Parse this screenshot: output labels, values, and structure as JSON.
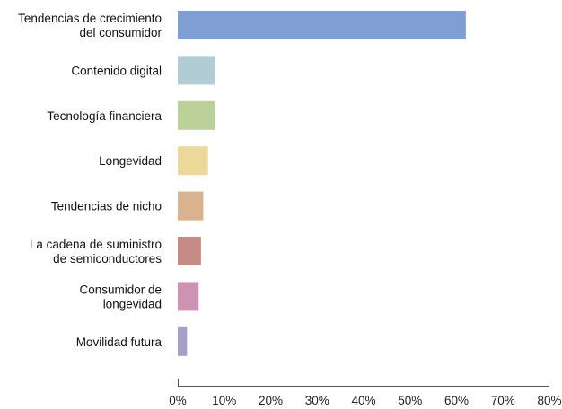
{
  "chart_data": {
    "type": "bar",
    "orientation": "horizontal",
    "categories": [
      "Tendencias de crecimiento del consumidor",
      "Contenido digital",
      "Tecnología financiera",
      "Longevidad",
      "Tendencias de nicho",
      "La cadena de suministro de semiconductores",
      "Consumidor de longevidad",
      "Movilidad futura"
    ],
    "category_lines": [
      [
        "Tendencias de crecimiento",
        "del consumidor"
      ],
      [
        "Contenido digital"
      ],
      [
        "Tecnología financiera"
      ],
      [
        "Longevidad"
      ],
      [
        "Tendencias de nicho"
      ],
      [
        "La cadena de suministro",
        "de semiconductores"
      ],
      [
        "Consumidor de",
        "longevidad"
      ],
      [
        "Movilidad futura"
      ]
    ],
    "values": [
      62,
      8,
      8,
      6.5,
      5.5,
      5,
      4.5,
      2
    ],
    "colors": [
      "#7f9fd4",
      "#b1cdd3",
      "#bcd19a",
      "#ecd899",
      "#d9b38f",
      "#c78b86",
      "#cd93b3",
      "#a5a0c9"
    ],
    "xlim": [
      0,
      80
    ],
    "xticks": [
      "0%",
      "10%",
      "20%",
      "30%",
      "40%",
      "50%",
      "60%",
      "70%",
      "80%"
    ],
    "title": "",
    "xlabel": "",
    "ylabel": "",
    "grid": false,
    "legend": "none"
  }
}
